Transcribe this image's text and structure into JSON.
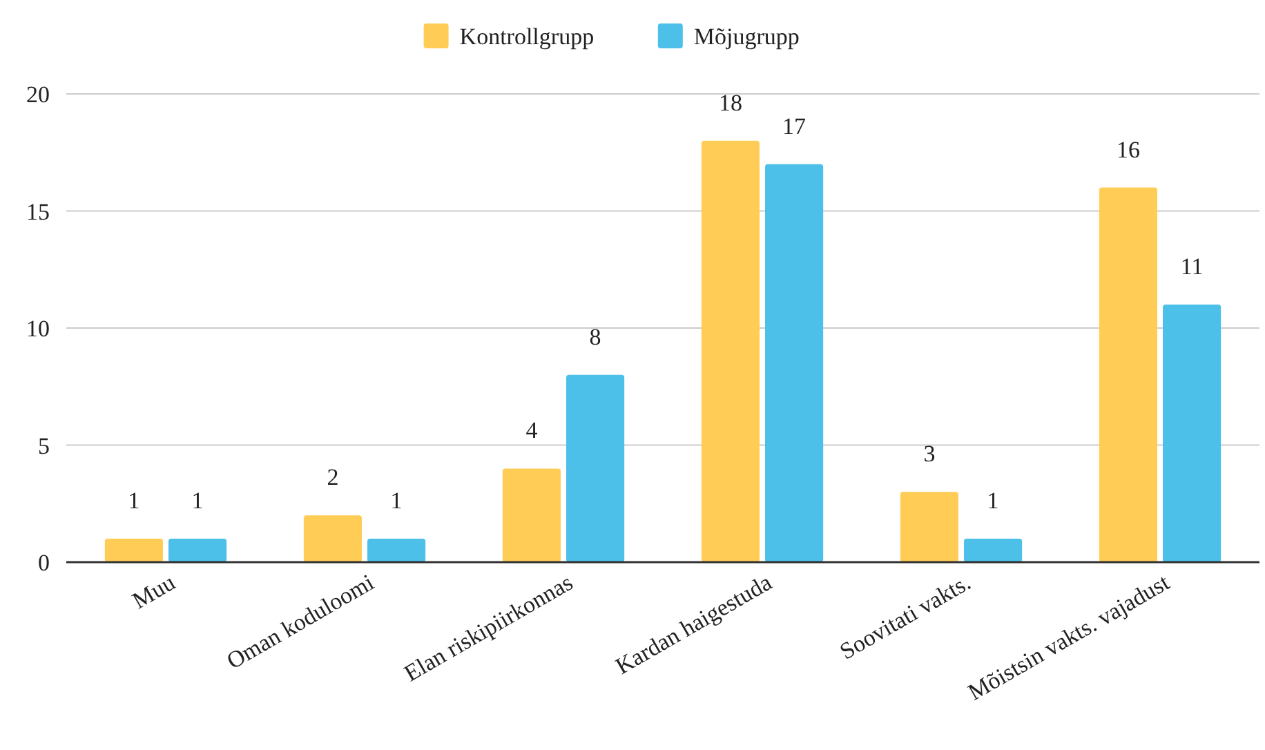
{
  "chart_data": {
    "type": "bar",
    "categories": [
      "Muu",
      "Oman koduloomi",
      "Elan riskipiirkonnas",
      "Kardan haigestuda",
      "Soovitati vakts.",
      "Mõistsin vakts. vajadust"
    ],
    "series": [
      {
        "name": "Kontrollgrupp",
        "color": "#ffcd56",
        "values": [
          1,
          2,
          4,
          18,
          3,
          16
        ]
      },
      {
        "name": "Mõjugrupp",
        "color": "#4cc0e8",
        "values": [
          1,
          1,
          8,
          17,
          1,
          11
        ]
      }
    ],
    "ylim": [
      0,
      20
    ],
    "yticks": [
      0,
      5,
      10,
      15,
      20
    ],
    "grid": "y",
    "legend": "top",
    "data_labels": true
  }
}
